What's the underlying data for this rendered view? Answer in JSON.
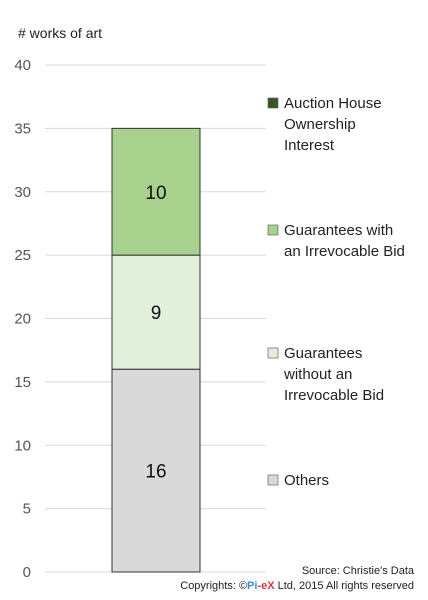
{
  "chart_data": {
    "type": "bar",
    "stacked": true,
    "categories": [
      ""
    ],
    "ylabel": "# works of art",
    "ylim": [
      0,
      40
    ],
    "yticks": [
      0,
      5,
      10,
      15,
      20,
      25,
      30,
      35,
      40
    ],
    "grid": true,
    "legend_position": "right",
    "series": [
      {
        "name": "Others",
        "values": [
          16
        ],
        "color": "#d9d9d9",
        "label": "16"
      },
      {
        "name": "Guarantees without an Irrevocable Bid",
        "values": [
          9
        ],
        "color": "#e2efda",
        "label": "9"
      },
      {
        "name": "Guarantees with an Irrevocable Bid",
        "values": [
          10
        ],
        "color": "#a9d18e",
        "label": "10"
      },
      {
        "name": "Auction House Ownership Interest",
        "values": [
          0
        ],
        "color": "#375623",
        "label": ""
      }
    ],
    "legend_lines": [
      {
        "series": "Auction House Ownership Interest",
        "lines": [
          "Auction House",
          "Ownership",
          "Interest"
        ]
      },
      {
        "series": "Guarantees with an Irrevocable Bid",
        "lines": [
          "Guarantees with",
          "an Irrevocable Bid"
        ]
      },
      {
        "series": "Guarantees without an Irrevocable Bid",
        "lines": [
          "Guarantees",
          "without an",
          "Irrevocable Bid"
        ]
      },
      {
        "series": "Others",
        "lines": [
          "Others"
        ]
      }
    ]
  },
  "credits": {
    "source": "Source: Christie's Data",
    "copyright_prefix": "Copyrights: ©",
    "brand_part1": "Pi",
    "brand_part2": "-eX",
    "copyright_suffix": " Ltd, 2015 All rights reserved"
  }
}
